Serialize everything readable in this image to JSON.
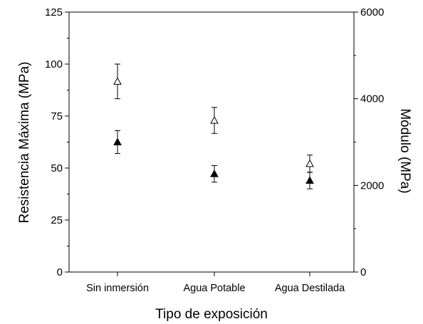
{
  "chart_data": {
    "type": "scatter",
    "xlabel": "Tipo de exposición",
    "ylabel": "Resistencia Máxima (MPa)",
    "y2label": "Módulo (MPa)",
    "categories": [
      "Sin inmersión",
      "Agua Potable",
      "Agua Destilada"
    ],
    "ylim": [
      0,
      125
    ],
    "y2lim": [
      0,
      6000
    ],
    "yticks": [
      "0",
      "25",
      "50",
      "75",
      "100",
      "125"
    ],
    "y2ticks": [
      "0",
      "2000",
      "4000",
      "6000"
    ],
    "grid": false,
    "legend": "none",
    "series": [
      {
        "marker": "filled-triangle",
        "axis": "left",
        "values": [
          62.5,
          47.2,
          44.0
        ],
        "error": [
          5.5,
          4.0,
          4.0
        ]
      },
      {
        "marker": "open-triangle",
        "axis": "right",
        "values": [
          4400,
          3500,
          2500
        ],
        "error": [
          400,
          300,
          200
        ]
      }
    ]
  }
}
